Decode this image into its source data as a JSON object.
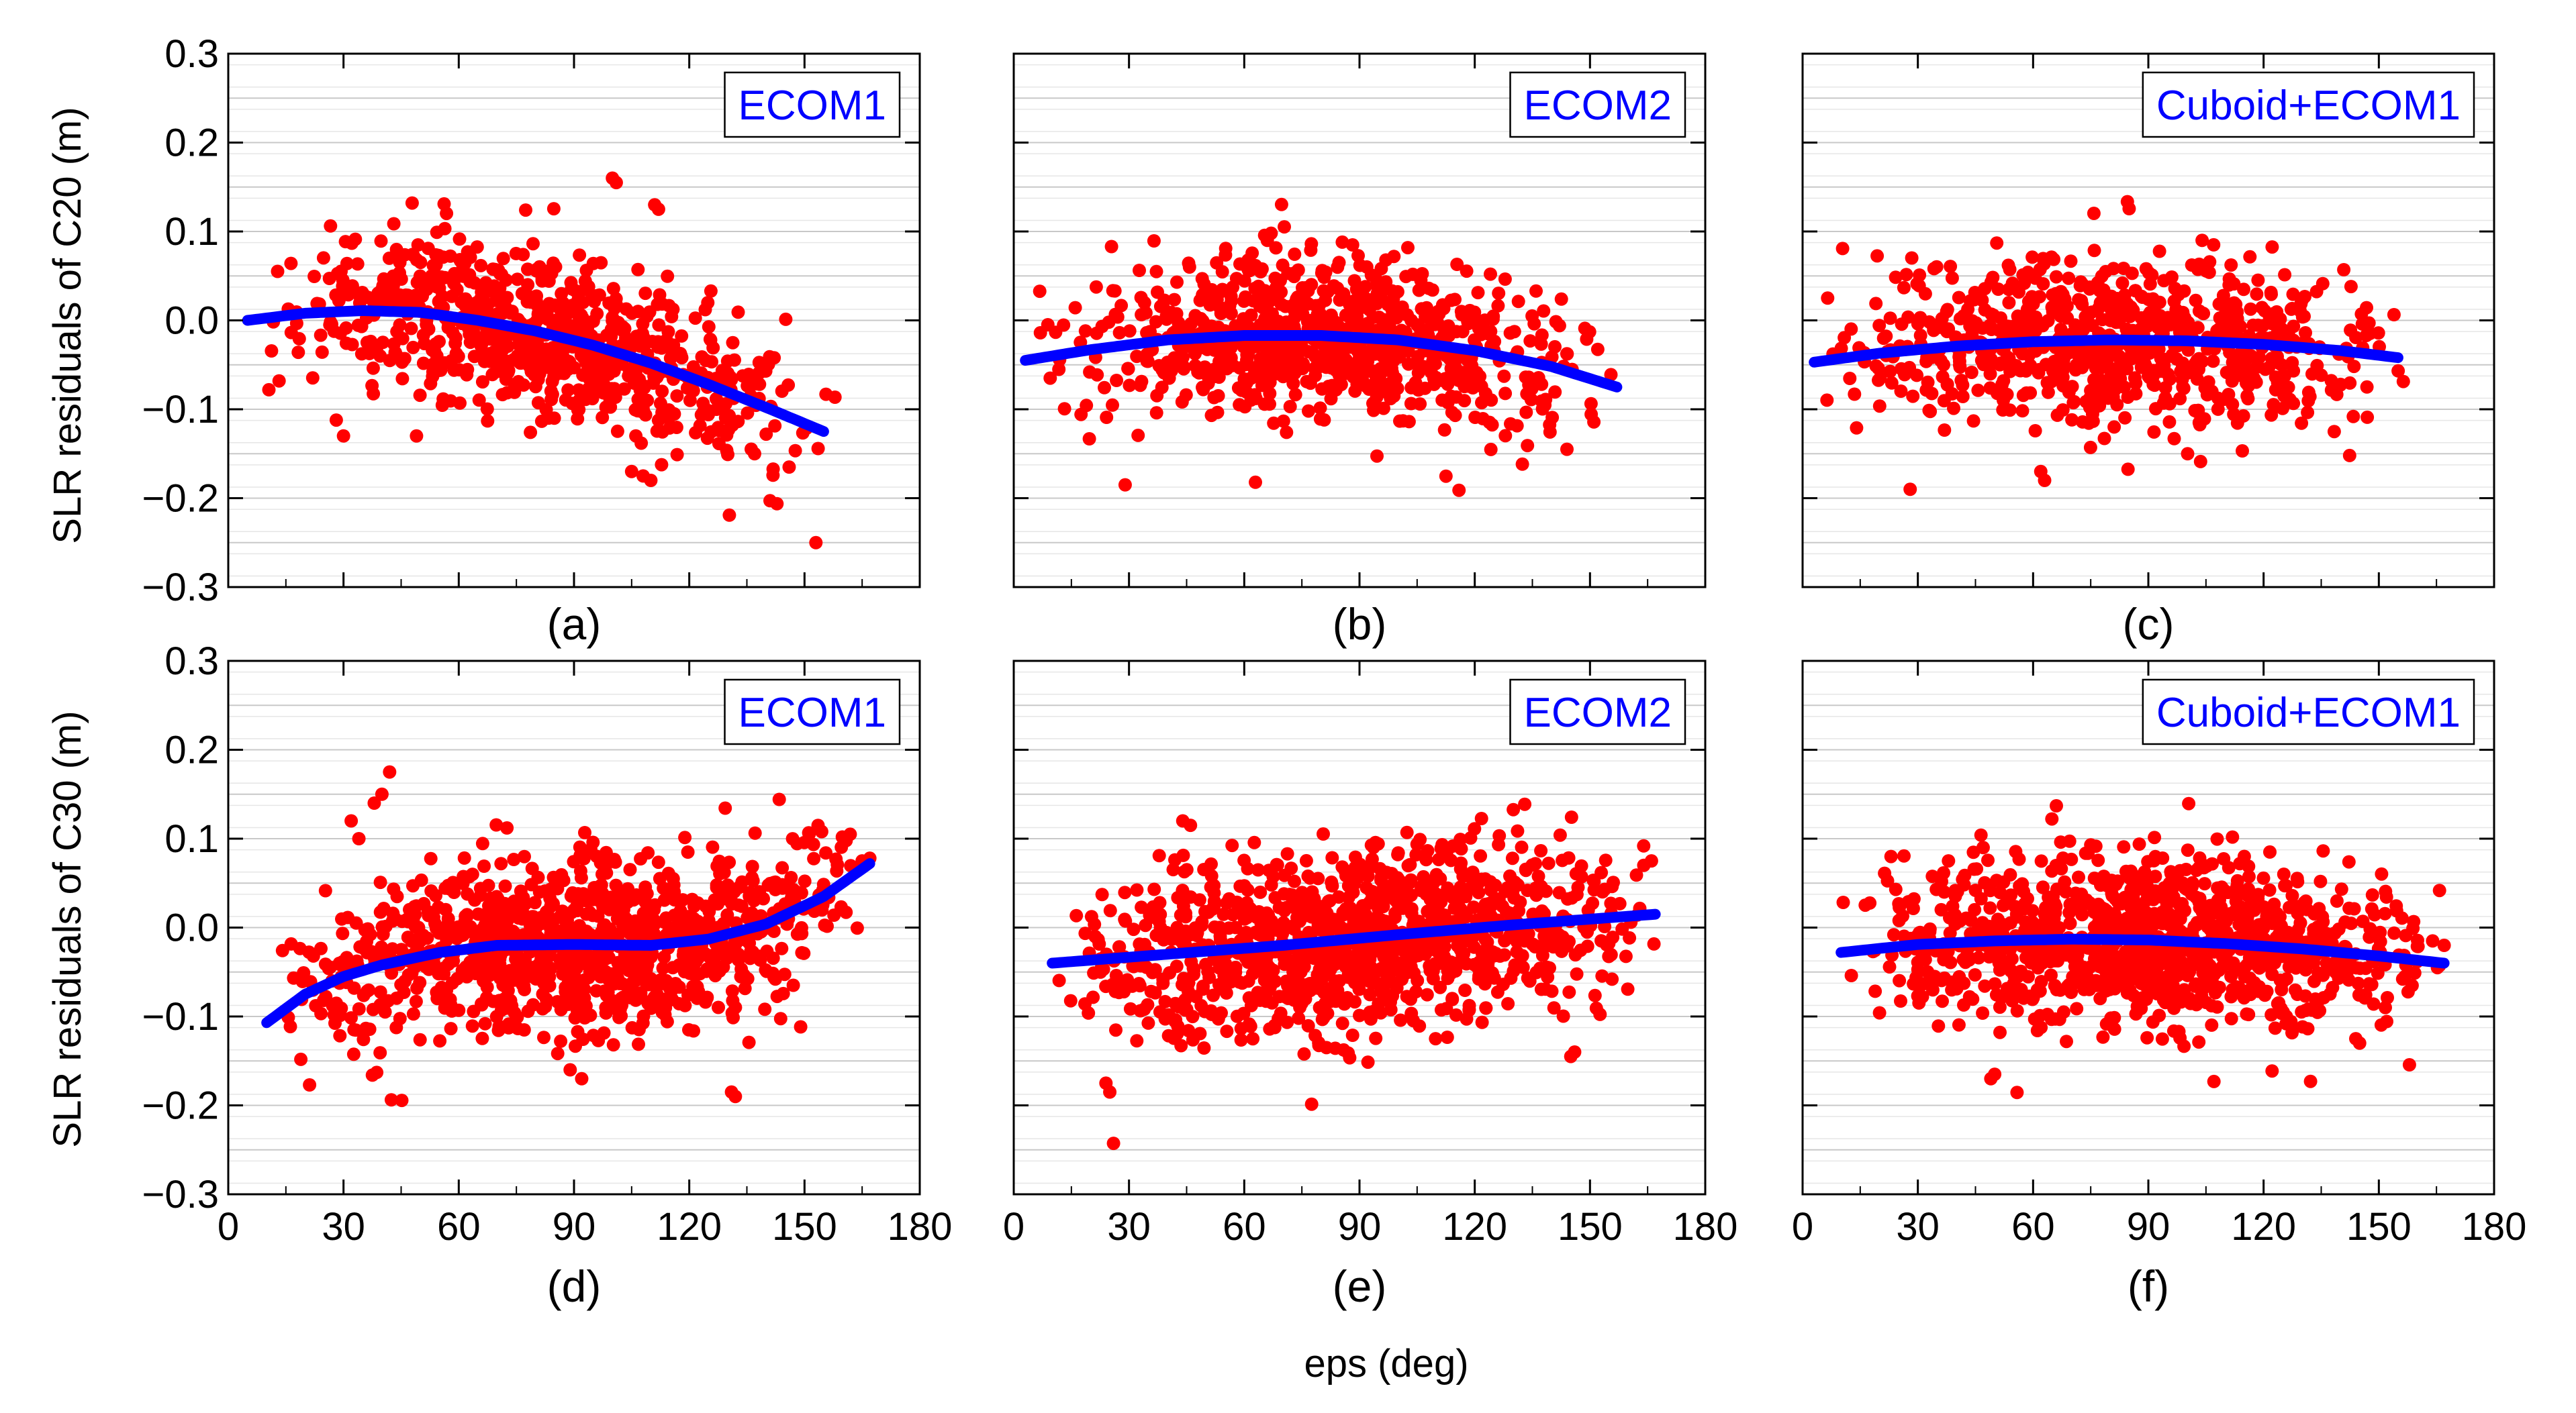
{
  "figure": {
    "xlabel": "eps (deg)",
    "ylabel_row1": "SLR residuals of C20 (m)",
    "ylabel_row2": "SLR residuals of C30 (m)",
    "x_ticks": [
      "0",
      "30",
      "60",
      "90",
      "120",
      "150",
      "180"
    ],
    "y_ticks": [
      "0.3",
      "0.2",
      "0.1",
      "0.0",
      "−0.1",
      "−0.2",
      "−0.3"
    ],
    "colors": {
      "points": "#ff0000",
      "fit": "#0000ff",
      "grid": "#c8c8c8"
    }
  },
  "chart_data": [
    {
      "type": "scatter",
      "panel": "(a)",
      "legend": "ECOM1",
      "xlim": [
        0,
        180
      ],
      "ylim": [
        -0.3,
        0.3
      ],
      "grid": true,
      "scatter_model": {
        "x_range": [
          8,
          158
        ],
        "density": "medium",
        "spread": 0.045,
        "outliers": [
          [
            100,
            0.16
          ],
          [
            101,
            0.155
          ],
          [
            111,
            0.13
          ],
          [
            112,
            0.125
          ],
          [
            105,
            -0.17
          ],
          [
            108,
            -0.175
          ],
          [
            110,
            -0.18
          ],
          [
            30,
            -0.13
          ],
          [
            49,
            -0.13
          ],
          [
            137,
            -0.15
          ],
          [
            146,
            -0.165
          ]
        ]
      },
      "fit_curve": {
        "x": [
          5,
          20,
          35,
          50,
          65,
          80,
          95,
          110,
          125,
          140,
          155
        ],
        "y": [
          0.0,
          0.008,
          0.011,
          0.009,
          0.0,
          -0.012,
          -0.028,
          -0.048,
          -0.072,
          -0.098,
          -0.125
        ]
      }
    },
    {
      "type": "scatter",
      "panel": "(b)",
      "legend": "ECOM2",
      "xlim": [
        0,
        180
      ],
      "ylim": [
        -0.3,
        0.3
      ],
      "grid": true,
      "scatter_model": {
        "x_range": [
          5,
          158
        ],
        "density": "medium",
        "spread": 0.045,
        "outliers": [
          [
            29,
            -0.185
          ],
          [
            144,
            -0.145
          ],
          [
            67,
            0.098
          ],
          [
            66,
            0.09
          ]
        ]
      },
      "fit_curve": {
        "x": [
          3,
          20,
          40,
          60,
          80,
          100,
          120,
          140,
          157
        ],
        "y": [
          -0.045,
          -0.033,
          -0.022,
          -0.017,
          -0.017,
          -0.022,
          -0.034,
          -0.052,
          -0.075
        ]
      }
    },
    {
      "type": "scatter",
      "panel": "(c)",
      "legend": "Cuboid+ECOM1",
      "xlim": [
        0,
        180
      ],
      "ylim": [
        -0.3,
        0.3
      ],
      "grid": true,
      "scatter_model": {
        "x_range": [
          3,
          158
        ],
        "density": "medium",
        "spread": 0.045,
        "outliers": [
          [
            28,
            -0.19
          ],
          [
            62,
            -0.17
          ],
          [
            63,
            -0.18
          ],
          [
            104,
            0.09
          ],
          [
            107,
            0.085
          ]
        ]
      },
      "fit_curve": {
        "x": [
          3,
          20,
          40,
          60,
          80,
          100,
          120,
          140,
          155
        ],
        "y": [
          -0.047,
          -0.037,
          -0.029,
          -0.024,
          -0.022,
          -0.023,
          -0.027,
          -0.034,
          -0.042
        ]
      }
    },
    {
      "type": "scatter",
      "panel": "(d)",
      "legend": "ECOM1",
      "xlim": [
        0,
        180
      ],
      "ylim": [
        -0.3,
        0.3
      ],
      "grid": true,
      "scatter_model": {
        "x_range": [
          10,
          168
        ],
        "density": "high",
        "spread": 0.05,
        "outliers": [
          [
            42,
            0.175
          ],
          [
            40,
            0.15
          ],
          [
            38,
            0.14
          ],
          [
            32,
            0.12
          ],
          [
            34,
            0.1
          ],
          [
            132,
            -0.19
          ],
          [
            131,
            -0.185
          ],
          [
            92,
            -0.17
          ],
          [
            89,
            -0.16
          ],
          [
            165,
            0.075
          ],
          [
            167,
            0.078
          ]
        ]
      },
      "fit_curve": {
        "x": [
          10,
          20,
          30,
          40,
          55,
          70,
          90,
          110,
          125,
          140,
          155,
          167
        ],
        "y": [
          -0.107,
          -0.075,
          -0.055,
          -0.042,
          -0.028,
          -0.02,
          -0.019,
          -0.02,
          -0.013,
          0.004,
          0.035,
          0.072
        ]
      }
    },
    {
      "type": "scatter",
      "panel": "(e)",
      "legend": "ECOM2",
      "xlim": [
        0,
        180
      ],
      "ylim": [
        -0.3,
        0.3
      ],
      "grid": true,
      "scatter_model": {
        "x_range": [
          10,
          168
        ],
        "density": "high",
        "spread": 0.05,
        "outliers": [
          [
            25,
            -0.185
          ],
          [
            24,
            -0.175
          ],
          [
            146,
            -0.14
          ],
          [
            145,
            -0.145
          ],
          [
            44,
            0.12
          ],
          [
            46,
            0.115
          ],
          [
            164,
            0.07
          ],
          [
            166,
            0.075
          ]
        ]
      },
      "fit_curve": {
        "x": [
          10,
          40,
          70,
          100,
          130,
          167
        ],
        "y": [
          -0.04,
          -0.03,
          -0.02,
          -0.008,
          0.003,
          0.015
        ]
      }
    },
    {
      "type": "scatter",
      "panel": "(f)",
      "legend": "Cuboid+ECOM1",
      "xlim": [
        0,
        180
      ],
      "ylim": [
        -0.3,
        0.3
      ],
      "grid": true,
      "scatter_model": {
        "x_range": [
          10,
          168
        ],
        "density": "high",
        "spread": 0.048,
        "outliers": [
          [
            49,
            -0.17
          ],
          [
            50,
            -0.165
          ],
          [
            145,
            -0.13
          ],
          [
            144,
            -0.125
          ],
          [
            47,
            0.09
          ],
          [
            164,
            -0.015
          ],
          [
            167,
            -0.02
          ]
        ]
      },
      "fit_curve": {
        "x": [
          10,
          30,
          50,
          70,
          90,
          110,
          130,
          150,
          167
        ],
        "y": [
          -0.028,
          -0.019,
          -0.015,
          -0.013,
          -0.014,
          -0.018,
          -0.024,
          -0.032,
          -0.04
        ]
      }
    }
  ]
}
